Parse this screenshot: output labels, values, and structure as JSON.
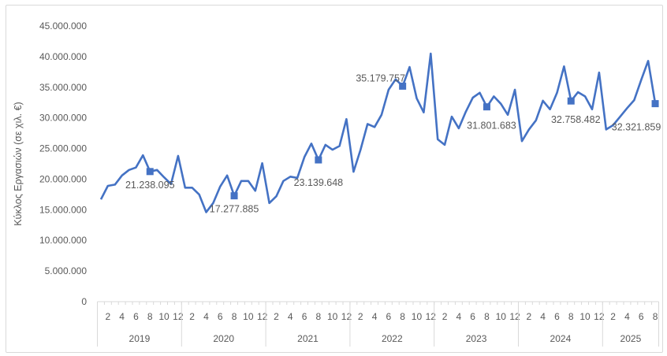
{
  "chart_data": {
    "type": "line",
    "title": "",
    "ylabel": "Κύκλος Εργασιών (σε χιλ. €)",
    "xlabel": "",
    "ylim": [
      0,
      45000000
    ],
    "yticks": [
      "0",
      "5.000.000",
      "10.000.000",
      "15.000.000",
      "20.000.000",
      "25.000.000",
      "30.000.000",
      "35.000.000",
      "40.000.000",
      "45.000.000"
    ],
    "ytick_values": [
      0,
      5000000,
      10000000,
      15000000,
      20000000,
      25000000,
      30000000,
      35000000,
      40000000,
      45000000
    ],
    "grid": false,
    "legend": "none",
    "colors": {
      "line": "#4472c4",
      "fill": "#c9d6ee",
      "axis": "#d9d9d9",
      "text": "#595959"
    },
    "years": [
      {
        "label": "2019",
        "months": 12
      },
      {
        "label": "2020",
        "months": 12
      },
      {
        "label": "2021",
        "months": 12
      },
      {
        "label": "2022",
        "months": 12
      },
      {
        "label": "2023",
        "months": 12
      },
      {
        "label": "2024",
        "months": 12
      },
      {
        "label": "2025",
        "months": 8
      }
    ],
    "series": [
      {
        "name": "Κύκλος Εργασιών",
        "values": [
          16.7,
          18.9,
          19.1,
          20.6,
          21.5,
          21.9,
          23.9,
          21.238095,
          21.5,
          20.3,
          19.2,
          23.8,
          18.6,
          18.6,
          17.5,
          14.6,
          16.1,
          18.8,
          20.6,
          17.277885,
          19.7,
          19.7,
          18.1,
          22.6,
          16.1,
          17.2,
          19.7,
          20.4,
          20.2,
          23.6,
          25.8,
          23.139648,
          25.6,
          24.8,
          25.4,
          29.8,
          21.2,
          24.8,
          29.0,
          28.5,
          30.5,
          34.6,
          36.3,
          35.179757,
          38.3,
          33.2,
          30.9,
          40.5,
          26.5,
          25.6,
          30.2,
          28.3,
          31.0,
          33.3,
          34.1,
          31.801683,
          33.5,
          32.3,
          30.5,
          34.6,
          26.2,
          28.1,
          29.6,
          32.8,
          31.4,
          34.1,
          38.4,
          32.758482,
          34.2,
          33.5,
          31.4,
          37.4,
          28.1,
          28.8,
          30.2,
          31.6,
          32.9,
          36.2,
          39.3,
          32.321859
        ],
        "value_unit_multiplier": 1000000
      }
    ],
    "annotations": [
      {
        "index": 7,
        "text": "21.238.095"
      },
      {
        "index": 19,
        "text": "17.277.885"
      },
      {
        "index": 31,
        "text": "23.139.648"
      },
      {
        "index": 43,
        "text": "35.179.757"
      },
      {
        "index": 55,
        "text": "31.801.683"
      },
      {
        "index": 67,
        "text": "32.758.482"
      },
      {
        "index": 79,
        "text": "32.321.859"
      }
    ]
  }
}
